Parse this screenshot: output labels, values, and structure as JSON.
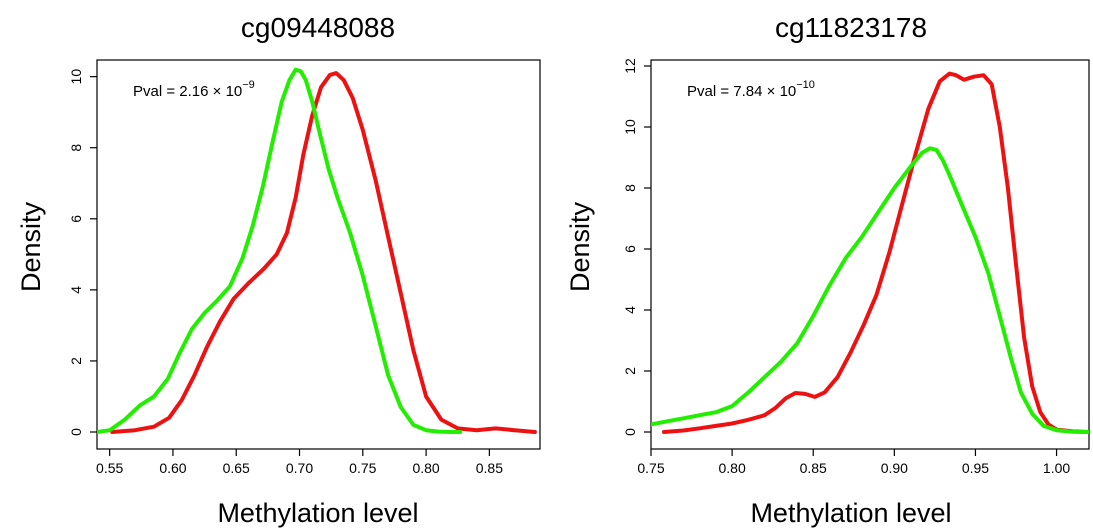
{
  "chart_data": [
    {
      "type": "line",
      "title": "cg09448088",
      "xlabel": "Methylation level",
      "ylabel": "Density",
      "xlim": [
        0.54,
        0.89
      ],
      "ylim": [
        0,
        10.3
      ],
      "x_ticks": [
        0.55,
        0.6,
        0.65,
        0.7,
        0.75,
        0.8,
        0.85
      ],
      "x_tick_labels": [
        "0.55",
        "0.60",
        "0.65",
        "0.70",
        "0.75",
        "0.80",
        "0.85"
      ],
      "y_ticks": [
        0,
        2,
        4,
        6,
        8,
        10
      ],
      "y_tick_labels": [
        "0",
        "2",
        "4",
        "6",
        "8",
        "10"
      ],
      "grid": false,
      "annotation": {
        "prefix": "Pval = 2.16 × 10",
        "exponent": "−9"
      },
      "series": [
        {
          "color": "#ee1111",
          "x": [
            0.552,
            0.57,
            0.585,
            0.597,
            0.607,
            0.617,
            0.627,
            0.637,
            0.648,
            0.66,
            0.672,
            0.682,
            0.69,
            0.697,
            0.703,
            0.71,
            0.717,
            0.724,
            0.729,
            0.735,
            0.742,
            0.75,
            0.76,
            0.77,
            0.78,
            0.79,
            0.8,
            0.812,
            0.825,
            0.84,
            0.855,
            0.87,
            0.886
          ],
          "y": [
            0,
            0.05,
            0.15,
            0.4,
            0.9,
            1.6,
            2.4,
            3.1,
            3.75,
            4.2,
            4.6,
            5.0,
            5.6,
            6.6,
            7.8,
            8.9,
            9.7,
            10.05,
            10.1,
            9.9,
            9.4,
            8.5,
            7.1,
            5.5,
            3.9,
            2.3,
            1.0,
            0.35,
            0.1,
            0.05,
            0.1,
            0.05,
            0
          ]
        },
        {
          "color": "#22ee00",
          "x": [
            0.54,
            0.55,
            0.562,
            0.574,
            0.585,
            0.596,
            0.605,
            0.615,
            0.625,
            0.635,
            0.645,
            0.655,
            0.663,
            0.671,
            0.679,
            0.686,
            0.692,
            0.697,
            0.701,
            0.705,
            0.71,
            0.716,
            0.723,
            0.73,
            0.74,
            0.75,
            0.76,
            0.77,
            0.78,
            0.79,
            0.8,
            0.81,
            0.82,
            0.827
          ],
          "y": [
            0,
            0.05,
            0.35,
            0.75,
            1.0,
            1.5,
            2.2,
            2.9,
            3.35,
            3.7,
            4.1,
            4.9,
            5.8,
            6.9,
            8.2,
            9.3,
            9.9,
            10.2,
            10.15,
            9.9,
            9.3,
            8.4,
            7.4,
            6.6,
            5.6,
            4.4,
            3.0,
            1.6,
            0.7,
            0.2,
            0.05,
            0.01,
            0,
            0
          ]
        }
      ]
    },
    {
      "type": "line",
      "title": "cg11823178",
      "xlabel": "Methylation level",
      "ylabel": "Density",
      "xlim": [
        0.75,
        1.02
      ],
      "ylim": [
        0,
        12
      ],
      "x_ticks": [
        0.75,
        0.8,
        0.85,
        0.9,
        0.95,
        1.0
      ],
      "x_tick_labels": [
        "0.75",
        "0.80",
        "0.85",
        "0.90",
        "0.95",
        "1.00"
      ],
      "y_ticks": [
        0,
        2,
        4,
        6,
        8,
        10,
        12
      ],
      "y_tick_labels": [
        "0",
        "2",
        "4",
        "6",
        "8",
        "10",
        "12"
      ],
      "grid": false,
      "annotation": {
        "prefix": "Pval = 7.84 × 10",
        "exponent": "−10"
      },
      "series": [
        {
          "color": "#ee1111",
          "x": [
            0.758,
            0.77,
            0.78,
            0.79,
            0.8,
            0.81,
            0.82,
            0.827,
            0.833,
            0.839,
            0.845,
            0.851,
            0.857,
            0.865,
            0.873,
            0.881,
            0.889,
            0.897,
            0.905,
            0.913,
            0.921,
            0.928,
            0.934,
            0.938,
            0.943,
            0.949,
            0.955,
            0.96,
            0.965,
            0.97,
            0.975,
            0.98,
            0.985,
            0.99,
            0.995,
            1.0,
            1.01,
            1.02
          ],
          "y": [
            0,
            0.05,
            0.12,
            0.2,
            0.28,
            0.4,
            0.55,
            0.8,
            1.1,
            1.28,
            1.25,
            1.15,
            1.3,
            1.8,
            2.6,
            3.5,
            4.5,
            5.9,
            7.5,
            9.1,
            10.6,
            11.5,
            11.75,
            11.7,
            11.55,
            11.65,
            11.7,
            11.4,
            10.0,
            8.0,
            5.5,
            3.1,
            1.5,
            0.65,
            0.25,
            0.08,
            0.02,
            0
          ]
        },
        {
          "color": "#22ee00",
          "x": [
            0.75,
            0.76,
            0.77,
            0.78,
            0.79,
            0.8,
            0.81,
            0.82,
            0.83,
            0.84,
            0.85,
            0.86,
            0.87,
            0.88,
            0.89,
            0.9,
            0.91,
            0.917,
            0.922,
            0.926,
            0.93,
            0.935,
            0.942,
            0.95,
            0.958,
            0.965,
            0.972,
            0.978,
            0.985,
            0.992,
            1.0,
            1.01,
            1.02
          ],
          "y": [
            0.25,
            0.35,
            0.45,
            0.55,
            0.65,
            0.85,
            1.3,
            1.8,
            2.3,
            2.9,
            3.8,
            4.8,
            5.7,
            6.4,
            7.2,
            8.0,
            8.7,
            9.15,
            9.3,
            9.25,
            8.9,
            8.3,
            7.4,
            6.4,
            5.2,
            3.8,
            2.4,
            1.3,
            0.6,
            0.2,
            0.06,
            0.01,
            0
          ]
        }
      ]
    }
  ]
}
